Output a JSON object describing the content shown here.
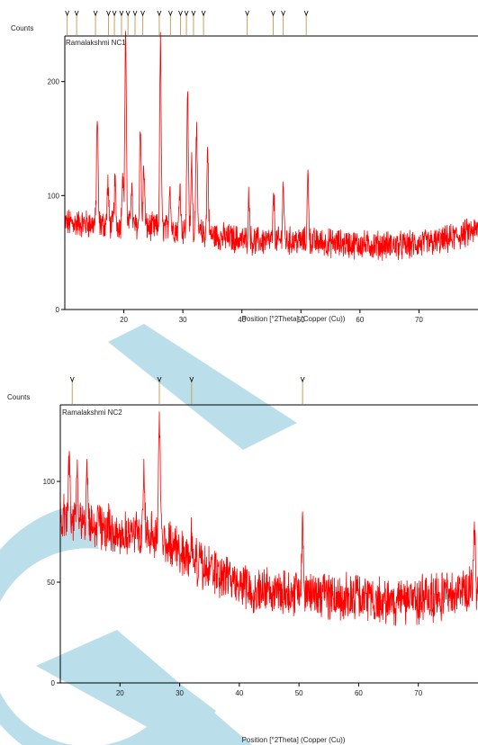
{
  "colors": {
    "trace": "#ff0000",
    "peak_marker": "#c8a064",
    "axis": "#000000",
    "watermark": "#a9d7e6",
    "background": "#ffffff"
  },
  "chart_data": [
    {
      "type": "line",
      "title": "",
      "sample_label": "Ramalakshmi NC1",
      "xlabel": "Position [°2Theta] (Copper (Cu))",
      "ylabel": "Counts",
      "xlim": [
        10,
        80
      ],
      "ylim": [
        0,
        240
      ],
      "x_ticks": [
        20,
        30,
        40,
        50,
        60,
        70
      ],
      "y_ticks": [
        0,
        100,
        200
      ],
      "grid": false,
      "legend": "none",
      "baseline_profile": [
        [
          10,
          76
        ],
        [
          20,
          74
        ],
        [
          30,
          70
        ],
        [
          36,
          64
        ],
        [
          42,
          60
        ],
        [
          50,
          60
        ],
        [
          60,
          57
        ],
        [
          68,
          56
        ],
        [
          74,
          60
        ],
        [
          80,
          70
        ]
      ],
      "noise_amplitude": 11,
      "peaks": [
        {
          "x": 15.5,
          "y": 170
        },
        {
          "x": 17.3,
          "y": 110
        },
        {
          "x": 18.5,
          "y": 112
        },
        {
          "x": 19.8,
          "y": 122
        },
        {
          "x": 20.3,
          "y": 245
        },
        {
          "x": 21.3,
          "y": 110
        },
        {
          "x": 22.8,
          "y": 162
        },
        {
          "x": 23.4,
          "y": 125
        },
        {
          "x": 26.2,
          "y": 232
        },
        {
          "x": 27.8,
          "y": 112
        },
        {
          "x": 29.5,
          "y": 112
        },
        {
          "x": 30.8,
          "y": 195
        },
        {
          "x": 31.5,
          "y": 130
        },
        {
          "x": 32.3,
          "y": 162
        },
        {
          "x": 34.2,
          "y": 142
        },
        {
          "x": 41.2,
          "y": 100
        },
        {
          "x": 45.4,
          "y": 100
        },
        {
          "x": 47.0,
          "y": 110
        },
        {
          "x": 51.2,
          "y": 118
        }
      ],
      "reference_markers": [
        10.4,
        12.0,
        15.2,
        17.4,
        18.4,
        19.6,
        20.7,
        21.9,
        23.2,
        26.0,
        27.9,
        29.6,
        30.6,
        31.8,
        33.5,
        40.9,
        45.3,
        47.0,
        50.9
      ]
    },
    {
      "type": "line",
      "title": "",
      "sample_label": "Ramalakshmi NC2",
      "xlabel": "Position [°2Theta] (Copper (Cu))",
      "ylabel": "Counts",
      "xlim": [
        10,
        80
      ],
      "ylim": [
        0,
        138
      ],
      "x_ticks": [
        20,
        30,
        40,
        50,
        60,
        70
      ],
      "y_ticks": [
        0,
        50,
        100
      ],
      "grid": false,
      "legend": "none",
      "baseline_profile": [
        [
          10,
          82
        ],
        [
          13,
          80
        ],
        [
          17,
          78
        ],
        [
          20,
          74
        ],
        [
          24,
          74
        ],
        [
          27,
          72
        ],
        [
          30,
          66
        ],
        [
          34,
          57
        ],
        [
          38,
          52
        ],
        [
          42,
          47
        ],
        [
          50,
          45
        ],
        [
          60,
          42
        ],
        [
          66,
          40
        ],
        [
          70,
          41
        ],
        [
          74,
          43
        ],
        [
          80,
          48
        ]
      ],
      "noise_amplitude": 10,
      "peaks": [
        {
          "x": 11.5,
          "y": 118
        },
        {
          "x": 12.8,
          "y": 110
        },
        {
          "x": 14.5,
          "y": 105
        },
        {
          "x": 24.0,
          "y": 112
        },
        {
          "x": 26.6,
          "y": 138
        },
        {
          "x": 32.0,
          "y": 75
        },
        {
          "x": 50.6,
          "y": 86
        },
        {
          "x": 79.4,
          "y": 80
        }
      ],
      "reference_markers": [
        12.0,
        26.6,
        32.0,
        50.6
      ]
    }
  ]
}
